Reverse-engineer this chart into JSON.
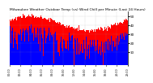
{
  "title": "Milwaukee Weather Outdoor Temp (vs) Wind Chill per Minute (Last 24 Hours)",
  "title_fontsize": 3.2,
  "background_color": "#ffffff",
  "plot_bg_color": "#ffffff",
  "bar_color_blue": "#0000ff",
  "bar_color_red": "#ff0000",
  "y_label_color": "#000000",
  "grid_color": "#999999",
  "ylim": [
    -5,
    55
  ],
  "yticks": [
    10,
    20,
    30,
    40,
    50
  ],
  "ylabel_fontsize": 3.0,
  "xlabel_fontsize": 2.3,
  "num_points": 1440,
  "seed": 99,
  "outdoor_base": 42,
  "outdoor_amp": 8,
  "chill_drop_base": 6,
  "chill_drop_amp": 15
}
